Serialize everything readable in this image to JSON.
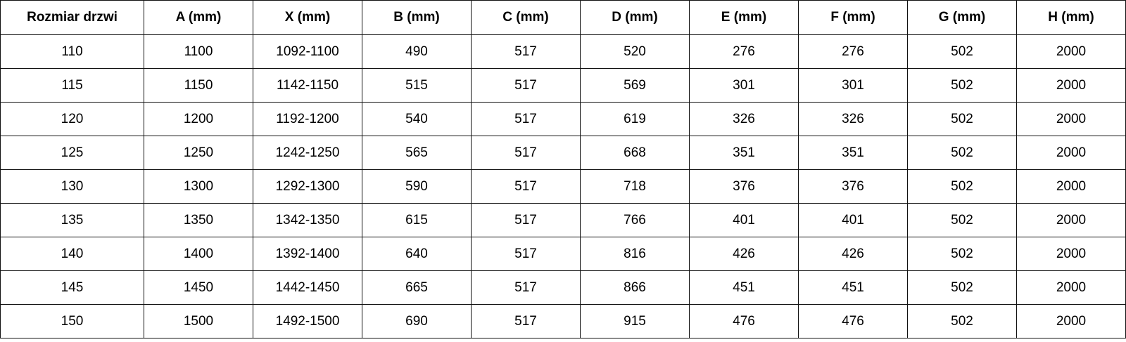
{
  "table": {
    "headers": [
      "Rozmiar drzwi",
      "A (mm)",
      "X (mm)",
      "B (mm)",
      "C (mm)",
      "D (mm)",
      "E (mm)",
      "F (mm)",
      "G (mm)",
      "H (mm)"
    ],
    "rows": [
      [
        "110",
        "1100",
        "1092-1100",
        "490",
        "517",
        "520",
        "276",
        "276",
        "502",
        "2000"
      ],
      [
        "115",
        "1150",
        "1142-1150",
        "515",
        "517",
        "569",
        "301",
        "301",
        "502",
        "2000"
      ],
      [
        "120",
        "1200",
        "1192-1200",
        "540",
        "517",
        "619",
        "326",
        "326",
        "502",
        "2000"
      ],
      [
        "125",
        "1250",
        "1242-1250",
        "565",
        "517",
        "668",
        "351",
        "351",
        "502",
        "2000"
      ],
      [
        "130",
        "1300",
        "1292-1300",
        "590",
        "517",
        "718",
        "376",
        "376",
        "502",
        "2000"
      ],
      [
        "135",
        "1350",
        "1342-1350",
        "615",
        "517",
        "766",
        "401",
        "401",
        "502",
        "2000"
      ],
      [
        "140",
        "1400",
        "1392-1400",
        "640",
        "517",
        "816",
        "426",
        "426",
        "502",
        "2000"
      ],
      [
        "145",
        "1450",
        "1442-1450",
        "665",
        "517",
        "866",
        "451",
        "451",
        "502",
        "2000"
      ],
      [
        "150",
        "1500",
        "1492-1500",
        "690",
        "517",
        "915",
        "476",
        "476",
        "502",
        "2000"
      ]
    ]
  }
}
